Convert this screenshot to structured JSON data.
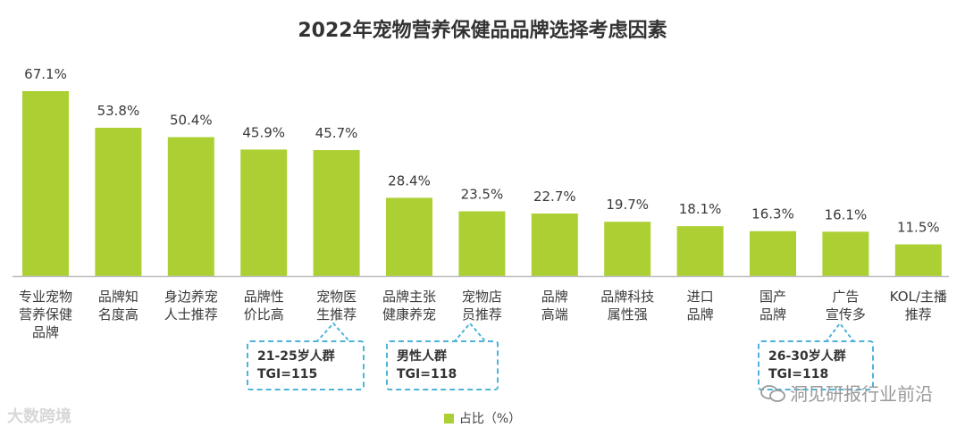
{
  "chart_data": {
    "type": "bar",
    "title": "2022年宠物营养保健品品牌选择考虑因素",
    "categories": [
      [
        "专业宠物",
        "营养保健",
        "品牌"
      ],
      [
        "品牌知",
        "名度高"
      ],
      [
        "身边养宠",
        "人士推荐"
      ],
      [
        "品牌性",
        "价比高"
      ],
      [
        "宠物医",
        "生推荐"
      ],
      [
        "品牌主张",
        "健康养宠"
      ],
      [
        "宠物店",
        "员推荐"
      ],
      [
        "品牌",
        "高端"
      ],
      [
        "品牌科技",
        "属性强"
      ],
      [
        "进口",
        "品牌"
      ],
      [
        "国产",
        "品牌"
      ],
      [
        "广告",
        "宣传多"
      ],
      [
        "KOL/主播",
        "推荐"
      ]
    ],
    "values": [
      67.1,
      53.8,
      50.4,
      45.9,
      45.7,
      28.4,
      23.5,
      22.7,
      19.7,
      18.1,
      16.3,
      16.1,
      11.5
    ],
    "value_labels": [
      "67.1%",
      "53.8%",
      "50.4%",
      "45.9%",
      "45.7%",
      "28.4%",
      "23.5%",
      "22.7%",
      "19.7%",
      "18.1%",
      "16.3%",
      "16.1%",
      "11.5%"
    ],
    "ylim": [
      0,
      67.1
    ],
    "grid": false,
    "legend": {
      "label": "占比（%）",
      "placement": "bottom"
    },
    "annotations": [
      {
        "category_index": 4,
        "lines": [
          "21-25岁人群",
          "TGI=115"
        ]
      },
      {
        "category_index": 6,
        "lines": [
          "男性人群",
          "TGI=118"
        ]
      },
      {
        "category_index": 11,
        "lines": [
          "26-30岁人群",
          "TGI=118"
        ]
      }
    ]
  },
  "colors": {
    "bar": "#acd033",
    "callout_border": "#4fb3d9",
    "axis": "#bfbfbf"
  },
  "watermarks": {
    "left": "大数跨境",
    "right": "洞见研报行业前沿"
  }
}
